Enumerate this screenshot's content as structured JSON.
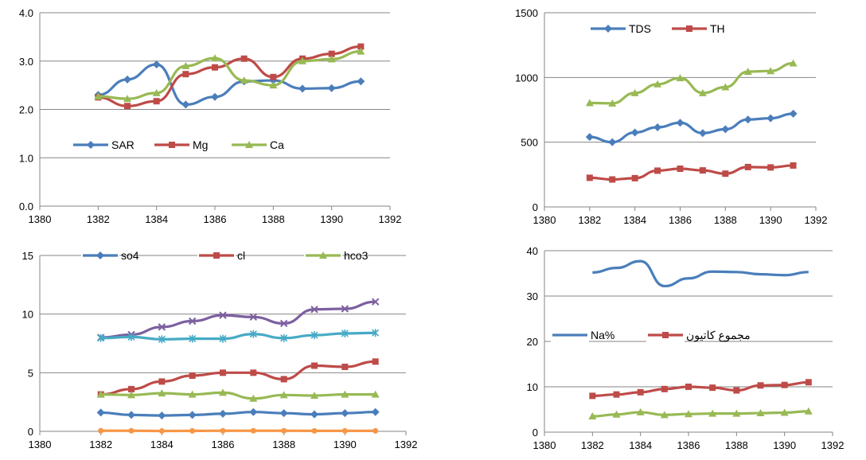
{
  "colors": {
    "blue": "#4a7ebb",
    "red": "#be4b48",
    "green": "#98b954",
    "purple": "#7d60a0",
    "teal": "#46aac5",
    "orange": "#f79646",
    "axis": "#868686"
  },
  "chart_data": [
    {
      "type": "line",
      "title": "",
      "xlabel": "",
      "ylabel": "",
      "xlim": [
        1380,
        1392
      ],
      "xticks": [
        "1380",
        "1382",
        "1384",
        "1386",
        "1388",
        "1390",
        "1392"
      ],
      "ylim": [
        0,
        4
      ],
      "yticks": [
        "0.0",
        "1.0",
        "2.0",
        "3.0",
        "4.0"
      ],
      "legend_position": "middle",
      "x": [
        1382,
        1383,
        1384,
        1385,
        1386,
        1387,
        1388,
        1389,
        1390,
        1391
      ],
      "series": [
        {
          "name": "SAR",
          "color": "#4a7ebb",
          "marker": "diamond",
          "values": [
            2.3,
            2.62,
            2.93,
            2.1,
            2.26,
            2.58,
            2.6,
            2.43,
            2.44,
            2.58
          ]
        },
        {
          "name": "Mg",
          "color": "#be4b48",
          "marker": "square",
          "values": [
            2.25,
            2.07,
            2.17,
            2.73,
            2.87,
            3.05,
            2.67,
            3.05,
            3.15,
            3.3
          ]
        },
        {
          "name": "Ca",
          "color": "#98b954",
          "marker": "triangle",
          "values": [
            2.27,
            2.22,
            2.34,
            2.9,
            3.06,
            2.6,
            2.5,
            3.0,
            3.04,
            3.2
          ]
        }
      ]
    },
    {
      "type": "line",
      "title": "",
      "xlabel": "",
      "ylabel": "",
      "xlim": [
        1380,
        1392
      ],
      "xticks": [
        "1380",
        "1382",
        "1384",
        "1386",
        "1388",
        "1390",
        "1392"
      ],
      "ylim": [
        0,
        1500
      ],
      "yticks": [
        "0",
        "500",
        "1000",
        "1500"
      ],
      "legend_position": "top",
      "x": [
        1382,
        1383,
        1384,
        1385,
        1386,
        1387,
        1388,
        1389,
        1390,
        1391
      ],
      "series": [
        {
          "name": "TDS",
          "color": "#4a7ebb",
          "marker": "diamond",
          "values": [
            540,
            500,
            575,
            615,
            650,
            570,
            600,
            675,
            685,
            720
          ]
        },
        {
          "name": "TH",
          "color": "#be4b48",
          "marker": "square",
          "values": [
            225,
            212,
            222,
            280,
            295,
            282,
            257,
            308,
            305,
            320
          ]
        },
        {
          "name": "",
          "color": "#98b954",
          "marker": "triangle",
          "values": [
            803,
            800,
            880,
            948,
            995,
            880,
            925,
            1045,
            1050,
            1110
          ]
        }
      ]
    },
    {
      "type": "line",
      "title": "",
      "xlabel": "",
      "ylabel": "",
      "xlim": [
        1380,
        1392
      ],
      "xticks": [
        "1380",
        "1382",
        "1384",
        "1386",
        "1388",
        "1390",
        "1392"
      ],
      "ylim": [
        0,
        15
      ],
      "yticks": [
        "0",
        "5",
        "10",
        "15"
      ],
      "legend_position": "top",
      "x": [
        1382,
        1383,
        1384,
        1385,
        1386,
        1387,
        1388,
        1389,
        1390,
        1391
      ],
      "series": [
        {
          "name": "so4",
          "color": "#4a7ebb",
          "marker": "diamond",
          "values": [
            1.6,
            1.4,
            1.35,
            1.4,
            1.5,
            1.65,
            1.55,
            1.45,
            1.55,
            1.65
          ]
        },
        {
          "name": "cl",
          "color": "#be4b48",
          "marker": "square",
          "values": [
            3.15,
            3.6,
            4.25,
            4.75,
            5.0,
            5.0,
            4.45,
            5.6,
            5.5,
            5.95
          ]
        },
        {
          "name": "hco3",
          "color": "#98b954",
          "marker": "triangle",
          "values": [
            3.15,
            3.1,
            3.25,
            3.15,
            3.3,
            2.8,
            3.1,
            3.05,
            3.15,
            3.15
          ]
        },
        {
          "name": "",
          "color": "#7d60a0",
          "marker": "x",
          "values": [
            8.0,
            8.25,
            8.9,
            9.4,
            9.9,
            9.75,
            9.2,
            10.4,
            10.45,
            11.05
          ]
        },
        {
          "name": "",
          "color": "#46aac5",
          "marker": "star",
          "values": [
            7.95,
            8.05,
            7.85,
            7.9,
            7.9,
            8.3,
            7.95,
            8.2,
            8.35,
            8.4
          ]
        },
        {
          "name": "",
          "color": "#f79646",
          "marker": "circle",
          "values": [
            0.05,
            0.05,
            0.03,
            0.04,
            0.05,
            0.05,
            0.05,
            0.04,
            0.04,
            0.04
          ]
        }
      ]
    },
    {
      "type": "line",
      "title": "",
      "xlabel": "",
      "ylabel": "",
      "xlim": [
        1380,
        1392
      ],
      "xticks": [
        "1380",
        "1382",
        "1384",
        "1386",
        "1388",
        "1390",
        "1392"
      ],
      "ylim": [
        0,
        40
      ],
      "yticks": [
        "0",
        "10",
        "20",
        "30",
        "40"
      ],
      "legend_position": "middle",
      "x": [
        1382,
        1383,
        1384,
        1385,
        1386,
        1387,
        1388,
        1389,
        1390,
        1391
      ],
      "series": [
        {
          "name": "Na%",
          "color": "#4a7ebb",
          "marker": "none",
          "values": [
            35.2,
            36.2,
            37.7,
            32.2,
            33.9,
            35.4,
            35.3,
            34.8,
            34.6,
            35.3
          ]
        },
        {
          "name": "مجموع کاتیون",
          "color": "#be4b48",
          "marker": "square",
          "values": [
            8.0,
            8.3,
            8.8,
            9.5,
            10.0,
            9.8,
            9.2,
            10.3,
            10.4,
            11.0
          ]
        },
        {
          "name": "",
          "color": "#98b954",
          "marker": "triangle",
          "values": [
            3.5,
            3.9,
            4.4,
            3.8,
            4.0,
            4.1,
            4.1,
            4.2,
            4.3,
            4.6
          ]
        }
      ]
    }
  ]
}
